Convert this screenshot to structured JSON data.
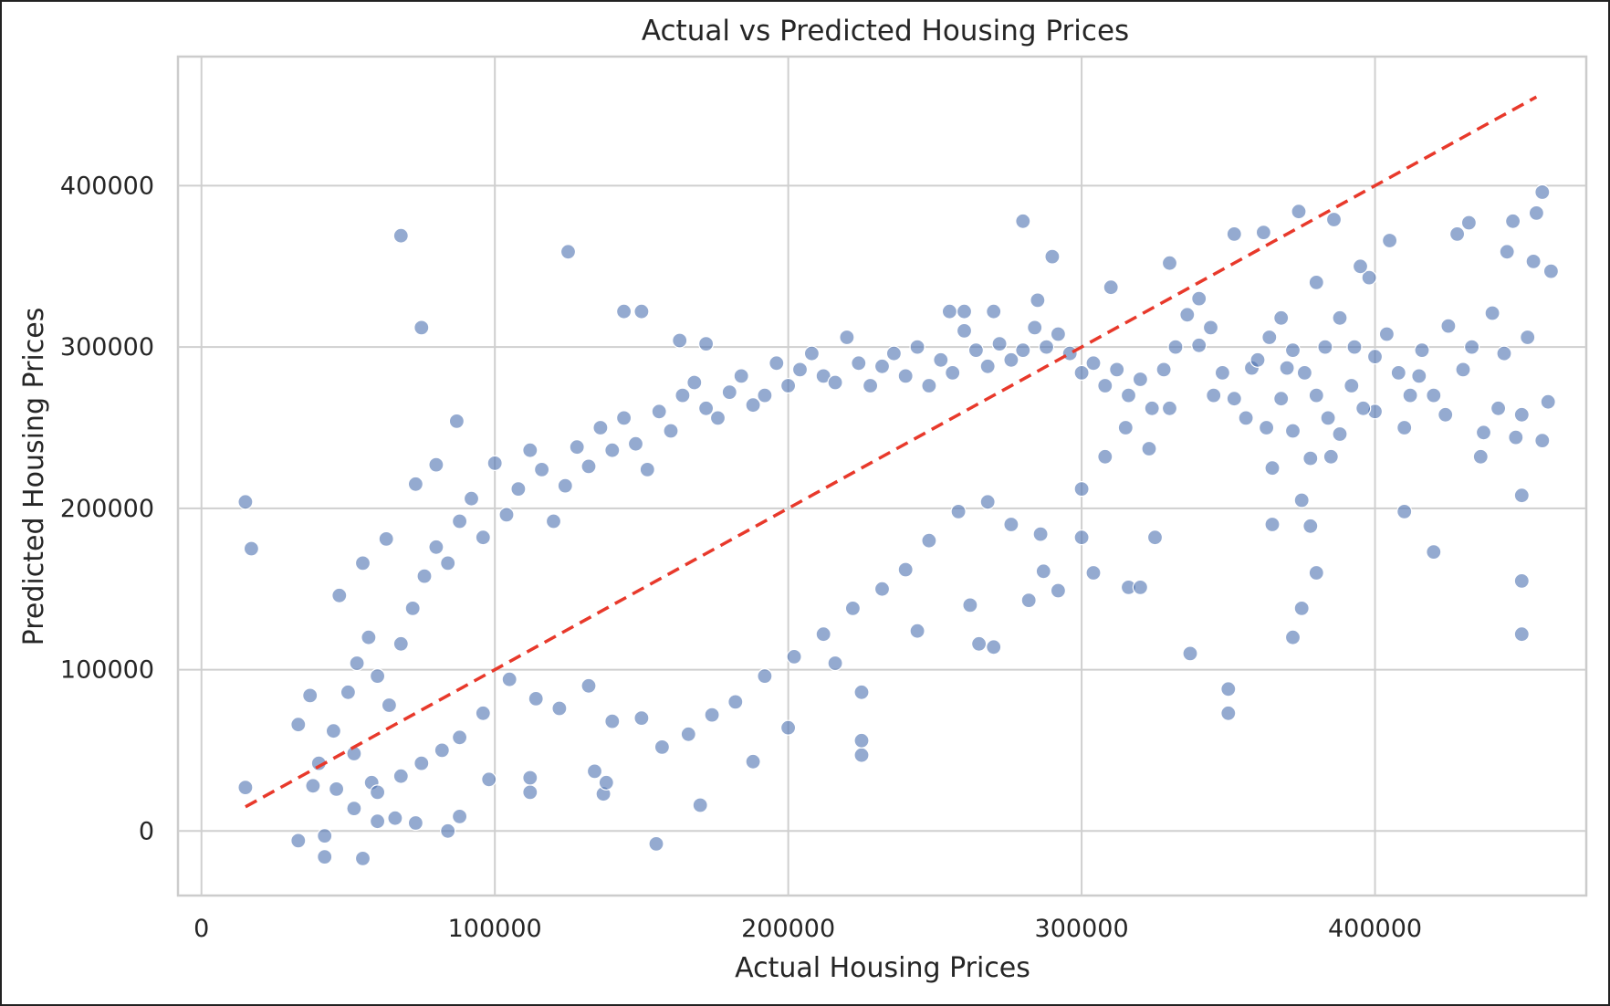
{
  "chart_data": {
    "type": "scatter",
    "title": "Actual vs Predicted Housing Prices",
    "xlabel": "Actual Housing Prices",
    "ylabel": "Predicted Housing Prices",
    "xlim": [
      -8000,
      472000
    ],
    "ylim": [
      -40000,
      480000
    ],
    "xticks": [
      0,
      100000,
      200000,
      300000,
      400000
    ],
    "yticks": [
      0,
      100000,
      200000,
      300000,
      400000
    ],
    "grid": true,
    "legend": "none",
    "point_color": "#4c72b0",
    "reference_line": {
      "style": "dashed",
      "color": "#e8392b",
      "x": [
        15000,
        455000
      ],
      "y": [
        15000,
        455000
      ]
    },
    "series": [
      {
        "values": [
          [
            15000,
            204000
          ],
          [
            17000,
            175000
          ],
          [
            15000,
            27000
          ],
          [
            33000,
            66000
          ],
          [
            37000,
            84000
          ],
          [
            33000,
            -6000
          ],
          [
            42000,
            -3000
          ],
          [
            42000,
            -16000
          ],
          [
            55000,
            -17000
          ],
          [
            68000,
            369000
          ],
          [
            75000,
            312000
          ],
          [
            87000,
            254000
          ],
          [
            125000,
            359000
          ],
          [
            144000,
            322000
          ],
          [
            150000,
            322000
          ],
          [
            163000,
            304000
          ],
          [
            172000,
            302000
          ],
          [
            55000,
            166000
          ],
          [
            47000,
            146000
          ],
          [
            63000,
            181000
          ],
          [
            80000,
            227000
          ],
          [
            73000,
            215000
          ],
          [
            52000,
            48000
          ],
          [
            58000,
            30000
          ],
          [
            60000,
            6000
          ],
          [
            66000,
            8000
          ],
          [
            73000,
            5000
          ],
          [
            84000,
            0
          ],
          [
            88000,
            9000
          ],
          [
            98000,
            32000
          ],
          [
            112000,
            24000
          ],
          [
            112000,
            33000
          ],
          [
            134000,
            37000
          ],
          [
            137000,
            23000
          ],
          [
            138000,
            30000
          ],
          [
            155000,
            -8000
          ],
          [
            170000,
            16000
          ],
          [
            188000,
            43000
          ],
          [
            200000,
            64000
          ],
          [
            225000,
            47000
          ],
          [
            225000,
            56000
          ],
          [
            225000,
            86000
          ],
          [
            216000,
            104000
          ],
          [
            244000,
            124000
          ],
          [
            262000,
            140000
          ],
          [
            265000,
            116000
          ],
          [
            270000,
            114000
          ],
          [
            282000,
            143000
          ],
          [
            287000,
            161000
          ],
          [
            292000,
            149000
          ],
          [
            304000,
            160000
          ],
          [
            316000,
            151000
          ],
          [
            320000,
            151000
          ],
          [
            325000,
            182000
          ],
          [
            337000,
            110000
          ],
          [
            350000,
            88000
          ],
          [
            350000,
            73000
          ],
          [
            372000,
            120000
          ],
          [
            375000,
            138000
          ],
          [
            380000,
            160000
          ],
          [
            378000,
            189000
          ],
          [
            365000,
            190000
          ],
          [
            375000,
            205000
          ],
          [
            410000,
            198000
          ],
          [
            420000,
            173000
          ],
          [
            450000,
            155000
          ],
          [
            450000,
            122000
          ],
          [
            450000,
            208000
          ],
          [
            457000,
            242000
          ],
          [
            280000,
            378000
          ],
          [
            374000,
            384000
          ],
          [
            386000,
            379000
          ],
          [
            432000,
            377000
          ],
          [
            457000,
            396000
          ],
          [
            455000,
            383000
          ],
          [
            447000,
            378000
          ],
          [
            445000,
            359000
          ],
          [
            428000,
            370000
          ],
          [
            405000,
            366000
          ],
          [
            398000,
            343000
          ],
          [
            352000,
            370000
          ],
          [
            362000,
            371000
          ],
          [
            290000,
            356000
          ],
          [
            285000,
            329000
          ],
          [
            330000,
            352000
          ],
          [
            260000,
            322000
          ],
          [
            270000,
            322000
          ],
          [
            255000,
            322000
          ],
          [
            310000,
            337000
          ],
          [
            430000,
            286000
          ],
          [
            442000,
            262000
          ],
          [
            437000,
            247000
          ],
          [
            448000,
            244000
          ],
          [
            450000,
            258000
          ],
          [
            459000,
            266000
          ],
          [
            460000,
            347000
          ],
          [
            454000,
            353000
          ],
          [
            440000,
            321000
          ],
          [
            433000,
            300000
          ],
          [
            415000,
            282000
          ],
          [
            425000,
            313000
          ],
          [
            410000,
            250000
          ],
          [
            420000,
            270000
          ],
          [
            400000,
            260000
          ],
          [
            393000,
            300000
          ],
          [
            388000,
            318000
          ],
          [
            395000,
            350000
          ],
          [
            380000,
            340000
          ],
          [
            383000,
            300000
          ],
          [
            370000,
            287000
          ],
          [
            358000,
            287000
          ],
          [
            363000,
            250000
          ],
          [
            365000,
            225000
          ],
          [
            372000,
            248000
          ],
          [
            378000,
            231000
          ],
          [
            385000,
            232000
          ],
          [
            368000,
            268000
          ],
          [
            345000,
            270000
          ],
          [
            340000,
            301000
          ],
          [
            330000,
            262000
          ],
          [
            323000,
            237000
          ],
          [
            315000,
            250000
          ],
          [
            308000,
            232000
          ],
          [
            300000,
            212000
          ],
          [
            300000,
            182000
          ],
          [
            286000,
            184000
          ],
          [
            276000,
            190000
          ],
          [
            268000,
            204000
          ],
          [
            258000,
            198000
          ],
          [
            248000,
            180000
          ],
          [
            240000,
            162000
          ],
          [
            232000,
            150000
          ],
          [
            222000,
            138000
          ],
          [
            212000,
            122000
          ],
          [
            202000,
            108000
          ],
          [
            192000,
            96000
          ],
          [
            182000,
            80000
          ],
          [
            174000,
            72000
          ],
          [
            166000,
            60000
          ],
          [
            157000,
            52000
          ],
          [
            150000,
            70000
          ],
          [
            140000,
            68000
          ],
          [
            132000,
            90000
          ],
          [
            122000,
            76000
          ],
          [
            114000,
            82000
          ],
          [
            105000,
            94000
          ],
          [
            96000,
            73000
          ],
          [
            88000,
            58000
          ],
          [
            82000,
            50000
          ],
          [
            75000,
            42000
          ],
          [
            68000,
            34000
          ],
          [
            60000,
            24000
          ],
          [
            52000,
            14000
          ],
          [
            46000,
            26000
          ],
          [
            40000,
            42000
          ],
          [
            38000,
            28000
          ],
          [
            45000,
            62000
          ],
          [
            50000,
            86000
          ],
          [
            53000,
            104000
          ],
          [
            57000,
            120000
          ],
          [
            60000,
            96000
          ],
          [
            64000,
            78000
          ],
          [
            68000,
            116000
          ],
          [
            72000,
            138000
          ],
          [
            76000,
            158000
          ],
          [
            80000,
            176000
          ],
          [
            84000,
            166000
          ],
          [
            88000,
            192000
          ],
          [
            92000,
            206000
          ],
          [
            96000,
            182000
          ],
          [
            100000,
            228000
          ],
          [
            104000,
            196000
          ],
          [
            108000,
            212000
          ],
          [
            112000,
            236000
          ],
          [
            116000,
            224000
          ],
          [
            120000,
            192000
          ],
          [
            124000,
            214000
          ],
          [
            128000,
            238000
          ],
          [
            132000,
            226000
          ],
          [
            136000,
            250000
          ],
          [
            140000,
            236000
          ],
          [
            144000,
            256000
          ],
          [
            148000,
            240000
          ],
          [
            152000,
            224000
          ],
          [
            156000,
            260000
          ],
          [
            160000,
            248000
          ],
          [
            164000,
            270000
          ],
          [
            168000,
            278000
          ],
          [
            172000,
            262000
          ],
          [
            176000,
            256000
          ],
          [
            180000,
            272000
          ],
          [
            184000,
            282000
          ],
          [
            188000,
            264000
          ],
          [
            192000,
            270000
          ],
          [
            196000,
            290000
          ],
          [
            200000,
            276000
          ],
          [
            204000,
            286000
          ],
          [
            208000,
            296000
          ],
          [
            212000,
            282000
          ],
          [
            216000,
            278000
          ],
          [
            220000,
            306000
          ],
          [
            224000,
            290000
          ],
          [
            228000,
            276000
          ],
          [
            232000,
            288000
          ],
          [
            236000,
            296000
          ],
          [
            240000,
            282000
          ],
          [
            244000,
            300000
          ],
          [
            248000,
            276000
          ],
          [
            252000,
            292000
          ],
          [
            256000,
            284000
          ],
          [
            260000,
            310000
          ],
          [
            264000,
            298000
          ],
          [
            268000,
            288000
          ],
          [
            272000,
            302000
          ],
          [
            276000,
            292000
          ],
          [
            280000,
            298000
          ],
          [
            284000,
            312000
          ],
          [
            288000,
            300000
          ],
          [
            292000,
            308000
          ],
          [
            296000,
            296000
          ],
          [
            300000,
            284000
          ],
          [
            304000,
            290000
          ],
          [
            308000,
            276000
          ],
          [
            312000,
            286000
          ],
          [
            316000,
            270000
          ],
          [
            320000,
            280000
          ],
          [
            324000,
            262000
          ],
          [
            328000,
            286000
          ],
          [
            332000,
            300000
          ],
          [
            336000,
            320000
          ],
          [
            340000,
            330000
          ],
          [
            344000,
            312000
          ],
          [
            348000,
            284000
          ],
          [
            352000,
            268000
          ],
          [
            356000,
            256000
          ],
          [
            360000,
            292000
          ],
          [
            364000,
            306000
          ],
          [
            368000,
            318000
          ],
          [
            372000,
            298000
          ],
          [
            376000,
            284000
          ],
          [
            380000,
            270000
          ],
          [
            384000,
            256000
          ],
          [
            388000,
            246000
          ],
          [
            392000,
            276000
          ],
          [
            396000,
            262000
          ],
          [
            400000,
            294000
          ],
          [
            404000,
            308000
          ],
          [
            408000,
            284000
          ],
          [
            412000,
            270000
          ],
          [
            416000,
            298000
          ],
          [
            424000,
            258000
          ],
          [
            436000,
            232000
          ],
          [
            444000,
            296000
          ],
          [
            452000,
            306000
          ]
        ]
      }
    ]
  }
}
